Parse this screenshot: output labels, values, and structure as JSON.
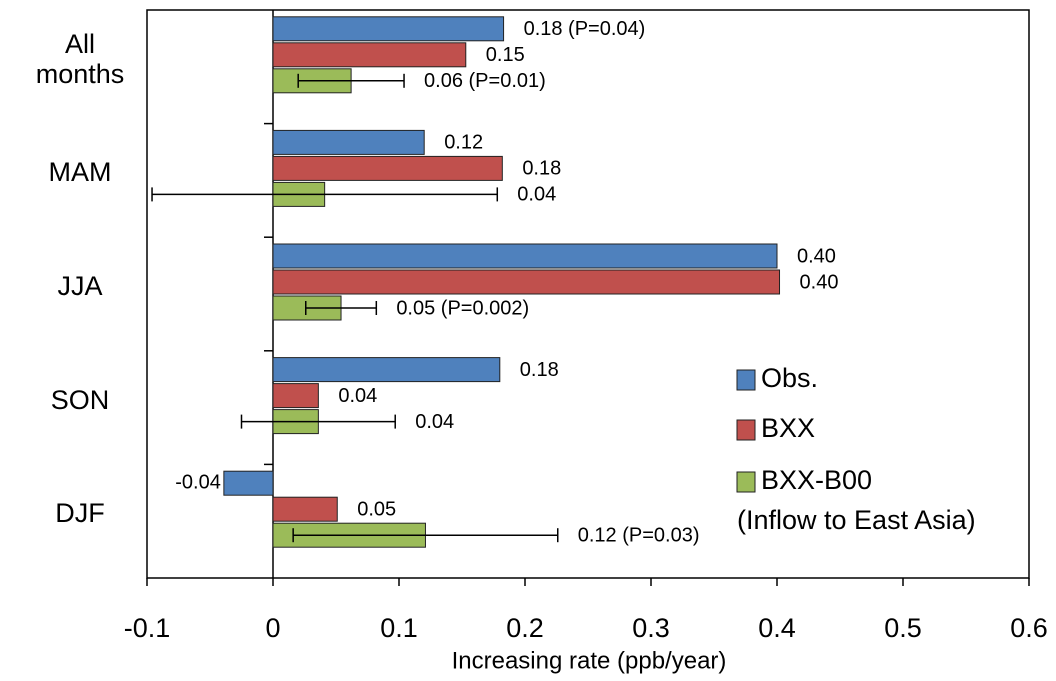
{
  "chart_data": {
    "type": "bar",
    "orientation": "horizontal",
    "categories": [
      "All months",
      "MAM",
      "JJA",
      "SON",
      "DJF"
    ],
    "series": [
      {
        "name": "Obs.",
        "color": "#4f81bd",
        "values": [
          0.183,
          0.12,
          0.4,
          0.18,
          -0.039
        ],
        "value_labels": [
          "0.18 (P=0.04)",
          "0.12",
          "0.40",
          "0.18",
          "-0.04"
        ]
      },
      {
        "name": "BXX",
        "color": "#c0504d",
        "values": [
          0.153,
          0.182,
          0.402,
          0.036,
          0.051
        ],
        "value_labels": [
          "0.15",
          "0.18",
          "0.40",
          "0.04",
          "0.05"
        ]
      },
      {
        "name": "BXX-B00",
        "color": "#9bbb59",
        "values": [
          0.062,
          0.041,
          0.054,
          0.036,
          0.121
        ],
        "errors": [
          0.042,
          0.137,
          0.028,
          0.061,
          0.105
        ],
        "value_labels": [
          "0.06 (P=0.01)",
          "0.04",
          "0.05 (P=0.002)",
          "0.04",
          "0.12 (P=0.03)"
        ]
      }
    ],
    "legend_note": "(Inflow to East Asia)",
    "xlabel": "Increasing rate (ppb/year)",
    "xlim": [
      -0.1,
      0.6
    ],
    "xticks": [
      -0.1,
      0,
      0.1,
      0.2,
      0.3,
      0.4,
      0.5,
      0.6
    ],
    "legend_position": "right"
  }
}
